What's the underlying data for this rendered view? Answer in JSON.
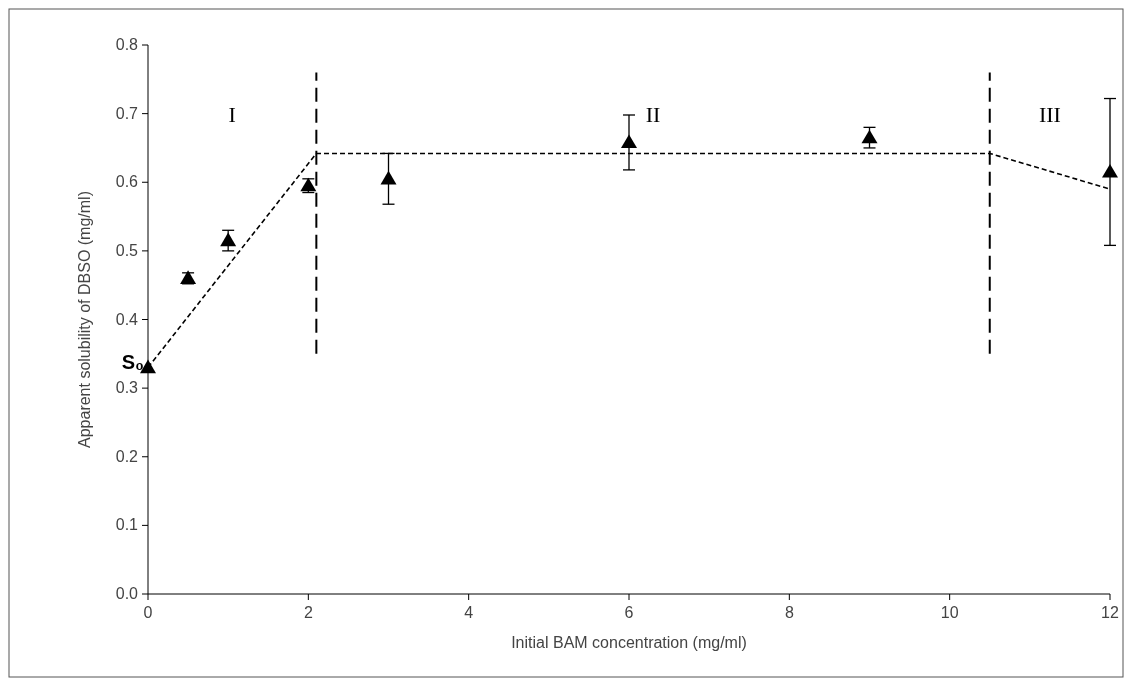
{
  "chart_data": {
    "type": "scatter",
    "xlabel": "Initial BAM concentration (mg/ml)",
    "ylabel": "Apparent solubility of DBSO (mg/ml)",
    "xlim": [
      0,
      12
    ],
    "xticks": [
      0,
      2,
      4,
      6,
      8,
      10,
      12
    ],
    "ylim": [
      0,
      0.8
    ],
    "yticks": [
      {
        "value": 0,
        "label": "0.0"
      },
      0.1,
      0.2,
      0.3,
      0.4,
      0.5,
      0.6,
      0.7,
      0.8
    ],
    "grid": false,
    "marker": "triangle",
    "series": [
      {
        "color": "#000000",
        "x": [
          0,
          0.5,
          1,
          2,
          3,
          6,
          9,
          12
        ],
        "values": [
          0.33,
          0.46,
          0.515,
          0.595,
          0.605,
          0.658,
          0.665,
          0.615
        ],
        "errors": [
          null,
          0.008,
          0.015,
          0.01,
          0.037,
          0.04,
          0.015,
          [
            0.508,
            0.722
          ]
        ]
      },
      {
        "type": "line",
        "color": "#000000",
        "line_style": "dotted",
        "marker": "none",
        "x": [
          0,
          2.1,
          10.5,
          12
        ],
        "values": [
          0.33,
          0.642,
          0.642,
          0.59
        ]
      },
      {
        "type": "line",
        "color": "#000000",
        "line_style": "dashed",
        "marker": "none",
        "x": [
          2.1,
          2.1
        ],
        "values": [
          0.35,
          0.76
        ]
      },
      {
        "type": "line",
        "color": "#000000",
        "line_style": "dashed",
        "marker": "none",
        "x": [
          10.5,
          10.5
        ],
        "values": [
          0.35,
          0.76
        ]
      }
    ],
    "annotations": [
      {
        "text": "S₀",
        "x": 0,
        "y": 0.34
      },
      "I",
      "II",
      "III"
    ]
  }
}
